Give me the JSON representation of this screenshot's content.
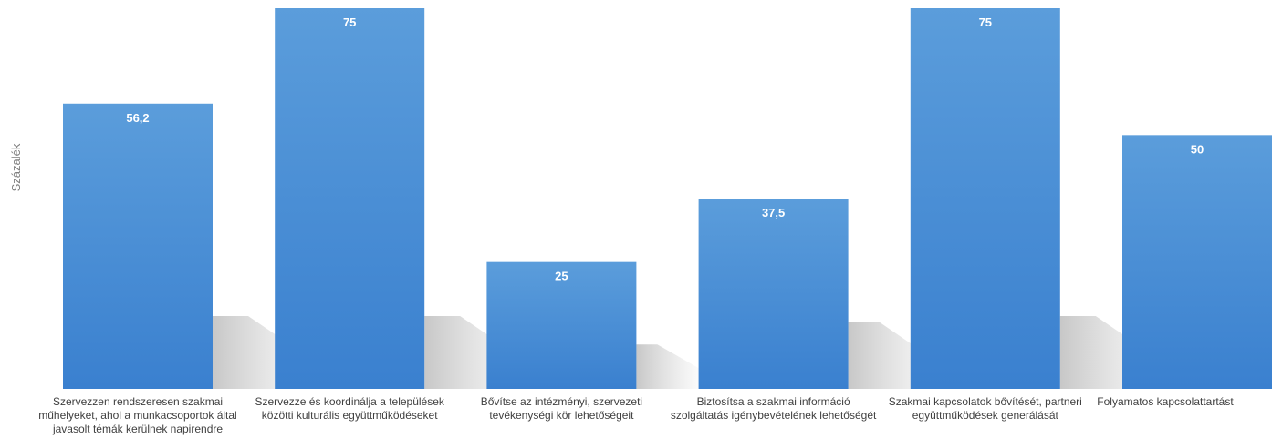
{
  "chart_data": {
    "type": "bar",
    "ylabel": "Százalék",
    "categories": [
      "Szervezzen rendszeresen szakmai műhelyeket, ahol a munkacsoportok által javasolt témák kerülnek napirendre",
      "Szervezze és koordinálja a települések közötti kulturális együttműködéseket",
      "Bővítse az intézményi, szervezeti tevékenységi kör lehetőségeit",
      "Biztosítsa a szakmai információ szolgáltatás igénybevételének lehetőségét",
      "Szakmai kapcsolatok bővítését, partneri együttműködések generálását",
      "Folyamatos kapcsolattartást"
    ],
    "values": [
      56.2,
      75,
      25,
      37.5,
      75,
      50
    ],
    "value_labels": [
      "56,2",
      "75",
      "25",
      "37,5",
      "75",
      "50"
    ],
    "ylim": [
      0,
      75
    ],
    "grid": false,
    "bar_color": "#4a8fd6"
  }
}
